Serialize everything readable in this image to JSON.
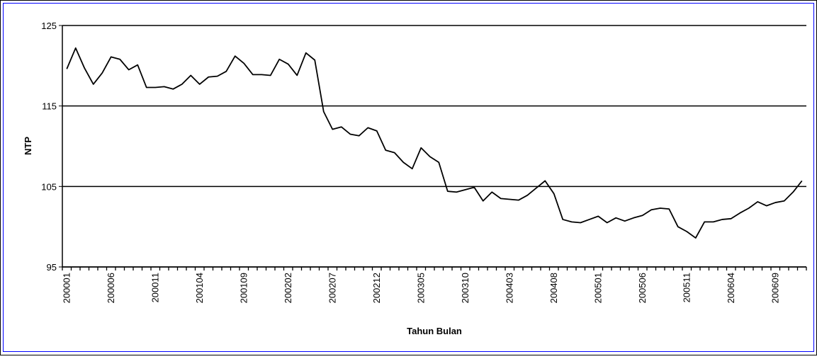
{
  "chart_data": {
    "type": "line",
    "y_label": "NTP",
    "x_label": "Tahun Bulan",
    "categories": [
      "200001",
      null,
      null,
      null,
      null,
      "200006",
      null,
      null,
      null,
      null,
      "200011",
      null,
      null,
      null,
      null,
      "200104",
      null,
      null,
      null,
      null,
      "200109",
      null,
      null,
      null,
      null,
      "200202",
      null,
      null,
      null,
      null,
      "200207",
      null,
      null,
      null,
      null,
      "200212",
      null,
      null,
      null,
      null,
      "200305",
      null,
      null,
      null,
      null,
      "200310",
      null,
      null,
      null,
      null,
      "200403",
      null,
      null,
      null,
      null,
      "200408",
      null,
      null,
      null,
      null,
      "200501",
      null,
      null,
      null,
      null,
      "200506",
      null,
      null,
      null,
      null,
      "200511",
      null,
      null,
      null,
      null,
      "200604",
      null,
      null,
      null,
      null,
      "200609",
      null,
      null,
      null
    ],
    "values": [
      119.6,
      122.2,
      119.7,
      117.7,
      119.1,
      121.1,
      120.8,
      119.5,
      120.1,
      117.3,
      117.3,
      117.4,
      117.1,
      117.7,
      118.8,
      117.7,
      118.6,
      118.7,
      119.3,
      121.2,
      120.3,
      118.9,
      118.9,
      118.8,
      120.8,
      120.2,
      118.8,
      121.6,
      120.7,
      114.3,
      112.1,
      112.4,
      111.5,
      111.3,
      112.3,
      111.9,
      109.5,
      109.2,
      108.0,
      107.2,
      109.8,
      108.7,
      108.0,
      104.4,
      104.3,
      104.6,
      104.9,
      103.2,
      104.3,
      103.5,
      103.4,
      103.3,
      103.9,
      104.8,
      105.7,
      104.1,
      100.9,
      100.6,
      100.5,
      100.9,
      101.3,
      100.5,
      101.1,
      100.7,
      101.1,
      101.4,
      102.1,
      102.3,
      102.2,
      100.0,
      99.4,
      98.6,
      100.6,
      100.6,
      100.9,
      101.0,
      101.7,
      102.3,
      103.1,
      102.6,
      103.0,
      103.2,
      104.3,
      105.7
    ],
    "color": "#000000",
    "ylim": [
      95,
      125
    ],
    "yticks": [
      95,
      105,
      115,
      125
    ],
    "grid": true
  }
}
